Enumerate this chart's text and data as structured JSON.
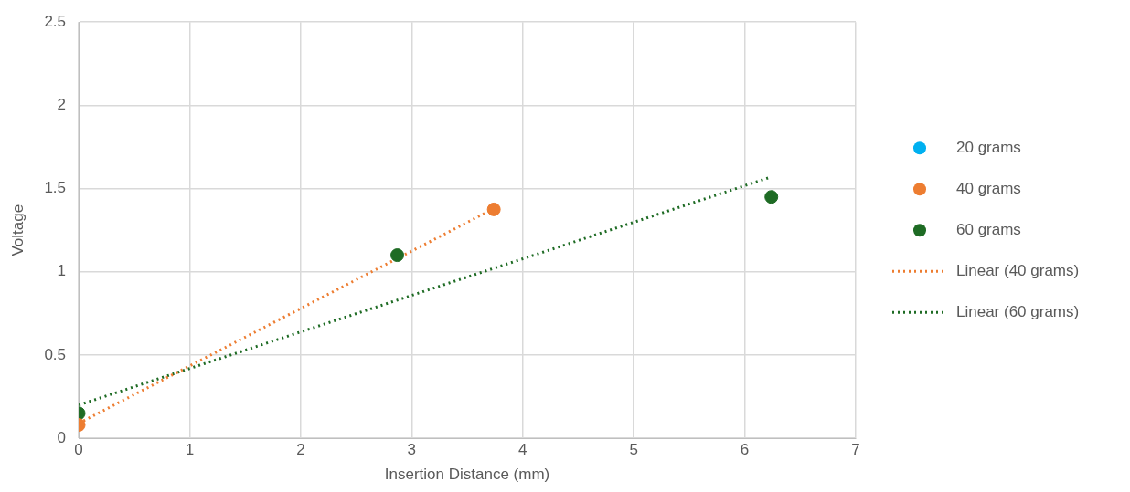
{
  "chart_data": {
    "type": "scatter",
    "xlabel": "Insertion Distance (mm)",
    "ylabel": "Voltage",
    "xlim": [
      0,
      7
    ],
    "xticks": [
      0,
      1,
      2,
      3,
      4,
      5,
      6,
      7
    ],
    "ylim": [
      0,
      2.5
    ],
    "yticks": [
      0,
      0.5,
      1,
      1.5,
      2,
      2.5
    ],
    "grid": true,
    "legend": "right",
    "marker": "circle",
    "series": [
      {
        "name": "20 grams",
        "color": "#00b0f0"
      },
      {
        "name": "40 grams",
        "color": "#ed7d31",
        "x": [
          0,
          3.74
        ],
        "values": [
          0.08,
          1.375
        ]
      },
      {
        "name": "60 grams",
        "color": "#1e6b24",
        "x": [
          0,
          2.87,
          6.24
        ],
        "values": [
          0.15,
          1.1,
          1.45
        ]
      },
      {
        "name": "Linear (40 grams)",
        "type": "line",
        "line_style": "dotted",
        "marker": "none",
        "color": "#ed7d31",
        "x": [
          0,
          3.74
        ],
        "values": [
          0.09,
          1.38
        ]
      },
      {
        "name": "Linear (60 grams)",
        "type": "line",
        "line_style": "dotted",
        "marker": "none",
        "color": "#1e6b24",
        "x": [
          0,
          6.24
        ],
        "values": [
          0.2,
          1.57
        ]
      }
    ]
  }
}
